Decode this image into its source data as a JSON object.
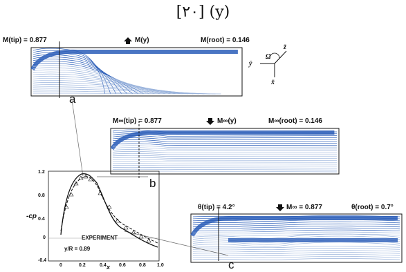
{
  "figure": {
    "title": "[٢٠] (y)"
  },
  "panel_a": {
    "tip_label": "M(tip) = 0.877",
    "arrow_label": "M(y)",
    "root_label": "M(root) = 0.146",
    "letter": "a",
    "axes": {
      "omega": "Ω",
      "z": "z̄",
      "y": "ȳ",
      "x": "x̄"
    }
  },
  "panel_b": {
    "tip_label": "M∞(tip) = 0.877",
    "arrow_label": "M∞(y)",
    "root_label": "M∞(root) = 0.146",
    "letter": "b"
  },
  "panel_c": {
    "tip_label": "θ(tip) = 4.2°",
    "arrow_label": "M∞ = 0.877",
    "root_label": "θ(root) = 0.7°",
    "letter": "c"
  },
  "cp_plot": {
    "ylabel": "-cp",
    "legend": "EXPERIMENT",
    "station": "y/R = 0.89",
    "xlabel": "x",
    "y_ticks": [
      "1.2",
      "0.8",
      "0.4",
      "0",
      "-0.4"
    ],
    "x_ticks": [
      "0",
      "0.2",
      "0.4",
      "0.6",
      "0.8",
      "1.0"
    ]
  },
  "colors": {
    "contour_blue": "#2a5db8",
    "contour_light": "#9bb4dc",
    "ink": "#111111"
  }
}
